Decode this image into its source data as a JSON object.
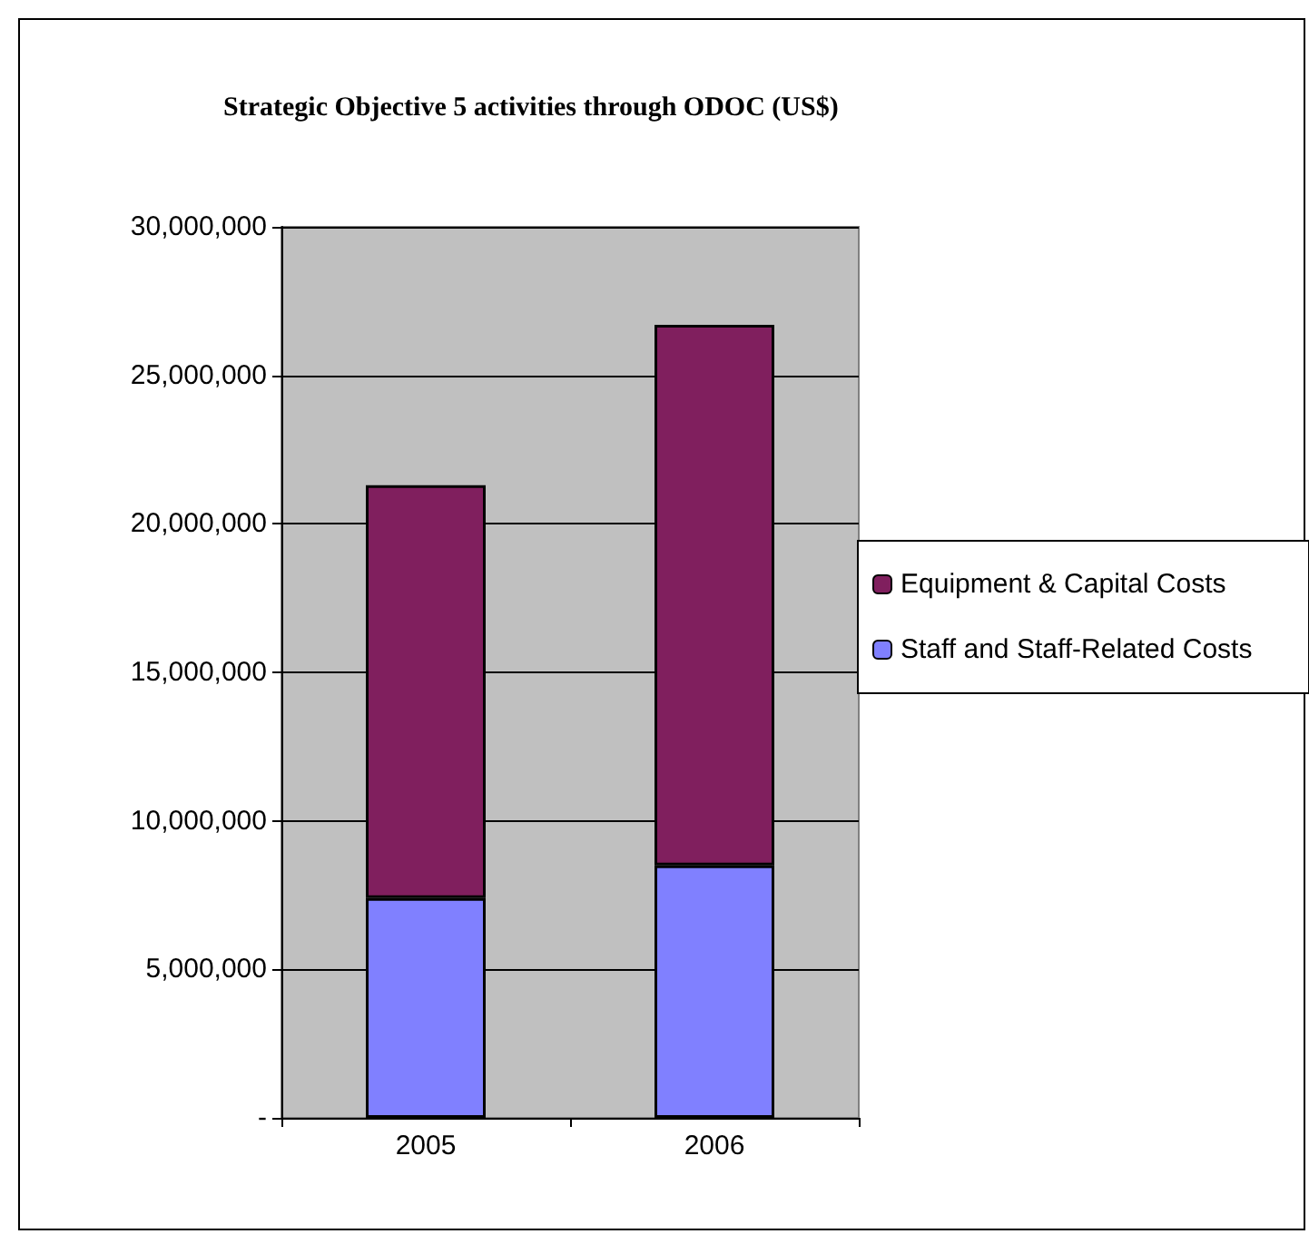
{
  "chart_data": {
    "type": "bar",
    "title": "Strategic Objective 5 activities through ODOC (US$)",
    "categories": [
      "2005",
      "2006"
    ],
    "stacked": true,
    "series": [
      {
        "name": "Staff and Staff-Related Costs",
        "color": "#8080ff",
        "values": [
          7400000,
          8500000
        ]
      },
      {
        "name": "Equipment & Capital Costs",
        "color": "#801f5e",
        "values": [
          13900000,
          18200000
        ]
      }
    ],
    "ylim": [
      0,
      30000000
    ],
    "yticks": [
      {
        "value": 0,
        "label": "-"
      },
      {
        "value": 5000000,
        "label": "5,000,000"
      },
      {
        "value": 10000000,
        "label": "10,000,000"
      },
      {
        "value": 15000000,
        "label": "15,000,000"
      },
      {
        "value": 20000000,
        "label": "20,000,000"
      },
      {
        "value": 25000000,
        "label": "25,000,000"
      },
      {
        "value": 30000000,
        "label": "30,000,000"
      }
    ],
    "grid": "y",
    "legend": "right"
  }
}
